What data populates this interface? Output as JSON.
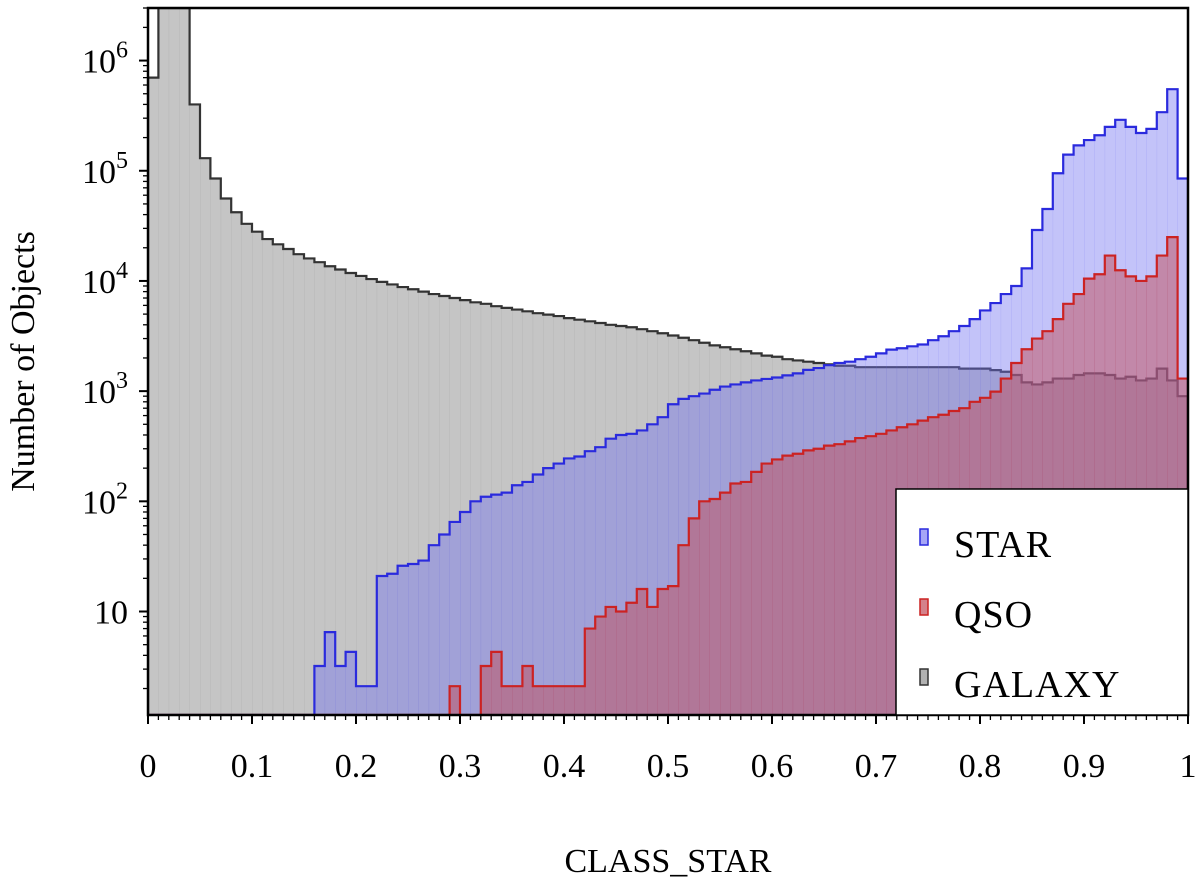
{
  "chart_data": {
    "type": "histogram",
    "title": "",
    "xlabel": "CLASS_STAR",
    "ylabel": "Number of Objects",
    "xlim": [
      0,
      1
    ],
    "ylim": [
      1.15,
      3000000
    ],
    "y_scale": "log",
    "x_ticks": [
      {
        "value": 0,
        "label": "0"
      },
      {
        "value": 0.1,
        "label": "0.1"
      },
      {
        "value": 0.2,
        "label": "0.2"
      },
      {
        "value": 0.3,
        "label": "0.3"
      },
      {
        "value": 0.4,
        "label": "0.4"
      },
      {
        "value": 0.5,
        "label": "0.5"
      },
      {
        "value": 0.6,
        "label": "0.6"
      },
      {
        "value": 0.7,
        "label": "0.7"
      },
      {
        "value": 0.8,
        "label": "0.8"
      },
      {
        "value": 0.9,
        "label": "0.9"
      },
      {
        "value": 1,
        "label": "1"
      }
    ],
    "y_ticks": [
      {
        "value": 10,
        "base": "10",
        "exp": ""
      },
      {
        "value": 100,
        "base": "10",
        "exp": "2"
      },
      {
        "value": 1000,
        "base": "10",
        "exp": "3"
      },
      {
        "value": 10000,
        "base": "10",
        "exp": "4"
      },
      {
        "value": 100000,
        "base": "10",
        "exp": "5"
      },
      {
        "value": 1000000,
        "base": "10",
        "exp": "6"
      }
    ],
    "bin_width": 0.01,
    "legend_position": "bottom-right",
    "grid": false,
    "series": [
      {
        "name": "GALAXY",
        "color": "#333333",
        "fill": "#9e9e9e",
        "fill_opacity": 0.6,
        "values": [
          700000,
          3000000,
          3000000,
          3000000,
          400000,
          130000,
          85000,
          56000,
          42000,
          33000,
          28000,
          24000,
          21500,
          19500,
          17500,
          16000,
          14800,
          13600,
          12700,
          11800,
          11100,
          10400,
          9800,
          9300,
          8800,
          8400,
          8000,
          7600,
          7300,
          7000,
          6700,
          6400,
          6200,
          5900,
          5700,
          5500,
          5300,
          5100,
          4950,
          4800,
          4600,
          4450,
          4300,
          4150,
          4000,
          3900,
          3800,
          3650,
          3500,
          3350,
          3200,
          3050,
          2900,
          2750,
          2600,
          2500,
          2400,
          2300,
          2200,
          2100,
          2050,
          1950,
          1900,
          1850,
          1800,
          1750,
          1700,
          1700,
          1650,
          1650,
          1650,
          1650,
          1650,
          1650,
          1650,
          1650,
          1650,
          1650,
          1600,
          1600,
          1600,
          1550,
          1500,
          1400,
          1200,
          1150,
          1200,
          1300,
          1300,
          1400,
          1450,
          1450,
          1400,
          1300,
          1350,
          1250,
          1300,
          1600,
          1250,
          900
        ]
      },
      {
        "name": "STAR",
        "color": "#2a2add",
        "fill": "#6f6ff0",
        "fill_opacity": 0.42,
        "values": [
          0,
          0,
          0,
          0,
          0,
          0,
          0,
          0,
          0,
          0,
          0,
          0,
          0,
          1.1,
          1.1,
          1.1,
          3.2,
          6.5,
          3.2,
          4.3,
          2.1,
          2.1,
          21,
          22,
          26,
          27,
          29,
          40,
          50,
          65,
          80,
          100,
          110,
          115,
          120,
          140,
          150,
          175,
          200,
          220,
          245,
          255,
          285,
          310,
          370,
          400,
          410,
          440,
          500,
          580,
          760,
          850,
          900,
          950,
          1030,
          1100,
          1150,
          1200,
          1250,
          1290,
          1330,
          1390,
          1450,
          1560,
          1620,
          1720,
          1800,
          1850,
          1950,
          2050,
          2200,
          2380,
          2450,
          2550,
          2650,
          2900,
          3150,
          3500,
          3900,
          4500,
          5400,
          6300,
          7600,
          9000,
          13000,
          29000,
          45000,
          95000,
          140000,
          170000,
          190000,
          210000,
          250000,
          290000,
          250000,
          220000,
          240000,
          340000,
          550000,
          85000
        ]
      },
      {
        "name": "QSO",
        "color": "#cc2222",
        "fill": "#c24d5a",
        "fill_opacity": 0.5,
        "values": [
          0,
          0,
          0,
          0,
          0,
          0,
          0,
          0,
          0,
          0,
          0,
          0,
          0,
          0,
          0,
          0,
          0,
          0,
          0,
          0,
          0,
          0,
          0,
          0,
          0,
          0,
          0,
          0,
          0,
          2.1,
          0,
          0,
          3.2,
          4.3,
          2.1,
          2.1,
          3.2,
          2.1,
          2.1,
          2.1,
          2.1,
          2.1,
          7,
          9,
          11,
          10,
          12,
          16,
          11,
          16,
          17,
          40,
          70,
          100,
          105,
          120,
          145,
          150,
          185,
          220,
          240,
          260,
          270,
          290,
          300,
          320,
          330,
          350,
          375,
          390,
          410,
          440,
          470,
          500,
          540,
          580,
          610,
          660,
          700,
          800,
          870,
          990,
          1300,
          1800,
          2400,
          3000,
          3500,
          4500,
          6200,
          7600,
          10500,
          11500,
          17000,
          12500,
          11000,
          10000,
          11000,
          17000,
          25000,
          1300
        ]
      }
    ]
  }
}
